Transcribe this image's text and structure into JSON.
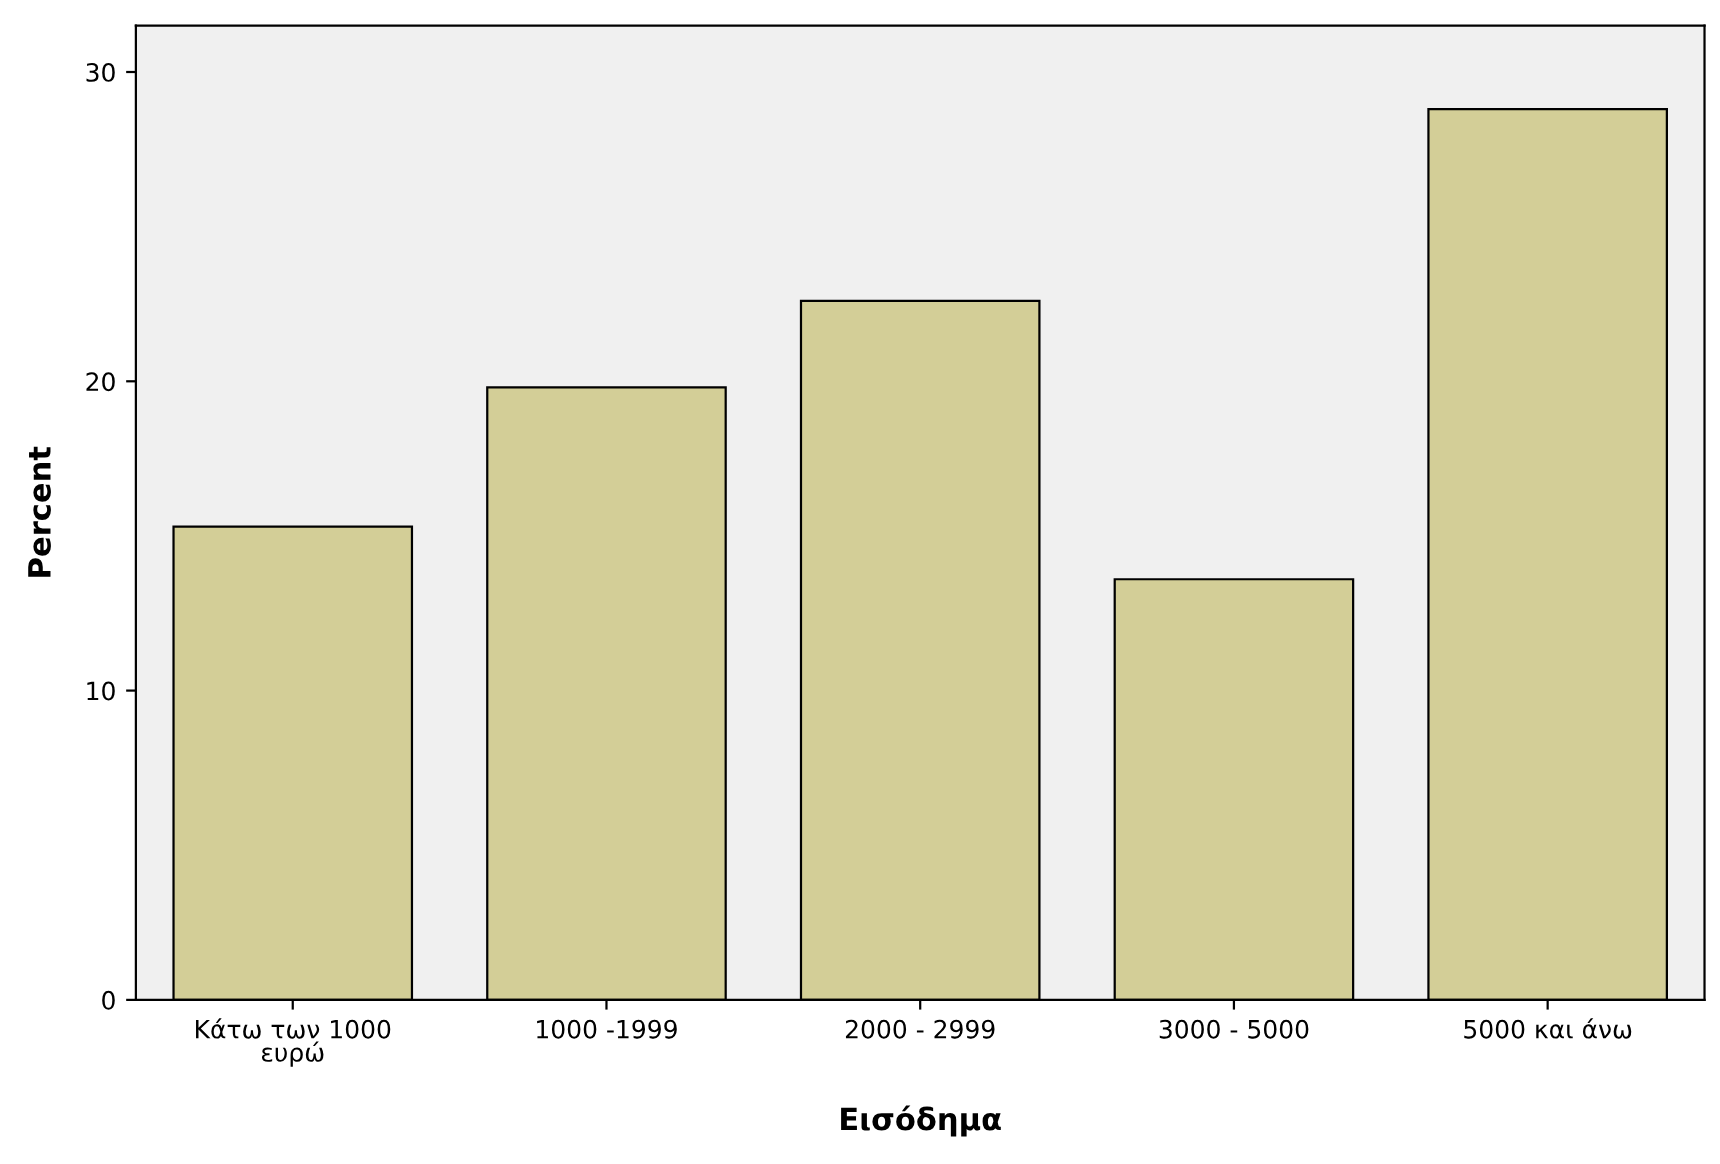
{
  "chart_data": {
    "type": "bar",
    "xlabel": "Εισόδημα",
    "ylabel": "Percent",
    "categories": [
      "Κάτω των 1000\nευρώ",
      "1000 -1999",
      "2000 - 2999",
      "3000 - 5000",
      "5000 και άνω"
    ],
    "values": [
      15.3,
      19.8,
      22.6,
      13.6,
      28.8
    ],
    "color": "#d3ce97",
    "ylim": [
      0,
      31.5
    ],
    "yticks": [
      0,
      10,
      20,
      30
    ],
    "grid": false
  }
}
